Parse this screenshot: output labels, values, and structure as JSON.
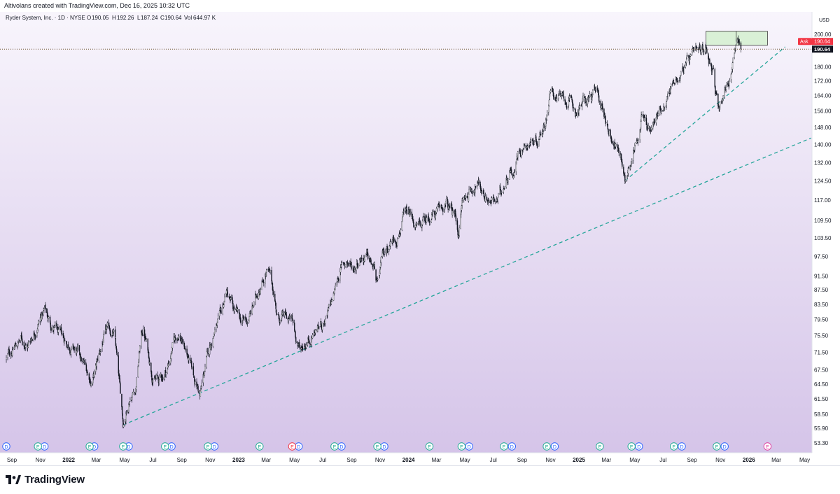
{
  "caption": "Altivolans created with TradingView.com, Dec 16, 2025 10:32 UTC",
  "brand": "TradingView",
  "colors": {
    "background_top": "#f8f5fc",
    "background_bottom": "#d4c3e8",
    "candles": "#131722",
    "trendline": "#26a69a",
    "price_line": "#6b5030",
    "ask_badge": "#f23645",
    "last_badge": "#131722",
    "zone_fill": "#d9f0d6",
    "earnings_green": "#22ab94",
    "earnings_red": "#f23645",
    "earnings_future": "#e040a0",
    "dividend_blue": "#2962ff"
  },
  "chart_data": {
    "type": "candlestick",
    "title": "Ryder System, Inc. · 1D · NYSE",
    "ohlc": {
      "O": "190.05",
      "H": "192.26",
      "L": "187.24",
      "C": "190.64",
      "Vol": "644.97 K"
    },
    "currency": "USD",
    "scale": "log",
    "ylim": [
      52.5,
      203
    ],
    "y_ticks": [
      "200.00",
      "190.00",
      "180.00",
      "172.00",
      "164.00",
      "156.00",
      "148.00",
      "140.00",
      "132.00",
      "124.50",
      "117.00",
      "109.50",
      "103.50",
      "97.50",
      "91.50",
      "87.50",
      "83.50",
      "79.50",
      "75.50",
      "71.50",
      "67.50",
      "64.50",
      "61.50",
      "58.50",
      "55.90",
      "53.30"
    ],
    "x_ticks": [
      {
        "label": "Sep",
        "date": "2021-09-01",
        "bold": false
      },
      {
        "label": "Nov",
        "date": "2021-11-01",
        "bold": false
      },
      {
        "label": "2022",
        "date": "2022-01-01",
        "bold": true
      },
      {
        "label": "Mar",
        "date": "2022-03-01",
        "bold": false
      },
      {
        "label": "May",
        "date": "2022-05-01",
        "bold": false
      },
      {
        "label": "Jul",
        "date": "2022-07-01",
        "bold": false
      },
      {
        "label": "Sep",
        "date": "2022-09-01",
        "bold": false
      },
      {
        "label": "Nov",
        "date": "2022-11-01",
        "bold": false
      },
      {
        "label": "2023",
        "date": "2023-01-01",
        "bold": true
      },
      {
        "label": "Mar",
        "date": "2023-03-01",
        "bold": false
      },
      {
        "label": "May",
        "date": "2023-05-01",
        "bold": false
      },
      {
        "label": "Jul",
        "date": "2023-07-01",
        "bold": false
      },
      {
        "label": "Sep",
        "date": "2023-09-01",
        "bold": false
      },
      {
        "label": "Nov",
        "date": "2023-11-01",
        "bold": false
      },
      {
        "label": "2024",
        "date": "2024-01-01",
        "bold": true
      },
      {
        "label": "Mar",
        "date": "2024-03-01",
        "bold": false
      },
      {
        "label": "May",
        "date": "2024-05-01",
        "bold": false
      },
      {
        "label": "Jul",
        "date": "2024-07-01",
        "bold": false
      },
      {
        "label": "Sep",
        "date": "2024-09-01",
        "bold": false
      },
      {
        "label": "Nov",
        "date": "2024-11-01",
        "bold": false
      },
      {
        "label": "2025",
        "date": "2025-01-01",
        "bold": true
      },
      {
        "label": "Mar",
        "date": "2025-03-01",
        "bold": false
      },
      {
        "label": "May",
        "date": "2025-05-01",
        "bold": false
      },
      {
        "label": "Jul",
        "date": "2025-07-01",
        "bold": false
      },
      {
        "label": "Sep",
        "date": "2025-09-01",
        "bold": false
      },
      {
        "label": "Nov",
        "date": "2025-11-01",
        "bold": false
      },
      {
        "label": "2026",
        "date": "2026-01-01",
        "bold": true
      },
      {
        "label": "Mar",
        "date": "2026-03-01",
        "bold": false
      },
      {
        "label": "May",
        "date": "2026-05-01",
        "bold": false
      }
    ],
    "price_path": [
      [
        "2021-08-20",
        70
      ],
      [
        "2021-09-01",
        72
      ],
      [
        "2021-09-20",
        74.5
      ],
      [
        "2021-10-05",
        73
      ],
      [
        "2021-10-20",
        77
      ],
      [
        "2021-11-01",
        80
      ],
      [
        "2021-11-10",
        82
      ],
      [
        "2021-11-25",
        78
      ],
      [
        "2021-12-15",
        75
      ],
      [
        "2022-01-05",
        73
      ],
      [
        "2022-01-20",
        71
      ],
      [
        "2022-02-05",
        68
      ],
      [
        "2022-02-20",
        65
      ],
      [
        "2022-03-01",
        68
      ],
      [
        "2022-03-15",
        74
      ],
      [
        "2022-03-30",
        77
      ],
      [
        "2022-04-10",
        75
      ],
      [
        "2022-04-20",
        64
      ],
      [
        "2022-04-28",
        57
      ],
      [
        "2022-05-03",
        58.5
      ],
      [
        "2022-05-12",
        62
      ],
      [
        "2022-05-25",
        64
      ],
      [
        "2022-06-05",
        75
      ],
      [
        "2022-06-10",
        77
      ],
      [
        "2022-06-20",
        72
      ],
      [
        "2022-07-01",
        66
      ],
      [
        "2022-07-15",
        65
      ],
      [
        "2022-08-01",
        68
      ],
      [
        "2022-08-15",
        74
      ],
      [
        "2022-08-25",
        76
      ],
      [
        "2022-09-10",
        72
      ],
      [
        "2022-09-25",
        66
      ],
      [
        "2022-10-05",
        64
      ],
      [
        "2022-10-10",
        62
      ],
      [
        "2022-10-25",
        70
      ],
      [
        "2022-11-10",
        77
      ],
      [
        "2022-11-25",
        80
      ],
      [
        "2022-12-05",
        87
      ],
      [
        "2022-12-20",
        82
      ],
      [
        "2023-01-05",
        79
      ],
      [
        "2023-01-20",
        79
      ],
      [
        "2023-02-05",
        84
      ],
      [
        "2023-02-15",
        89
      ],
      [
        "2023-03-01",
        93
      ],
      [
        "2023-03-10",
        91
      ],
      [
        "2023-03-20",
        85
      ],
      [
        "2023-03-25",
        80
      ],
      [
        "2023-04-10",
        80
      ],
      [
        "2023-04-25",
        79
      ],
      [
        "2023-05-05",
        75
      ],
      [
        "2023-05-12",
        72
      ],
      [
        "2023-05-25",
        74
      ],
      [
        "2023-06-10",
        76
      ],
      [
        "2023-06-25",
        78
      ],
      [
        "2023-07-10",
        80
      ],
      [
        "2023-07-25",
        86
      ],
      [
        "2023-08-05",
        93
      ],
      [
        "2023-08-20",
        96
      ],
      [
        "2023-09-05",
        94
      ],
      [
        "2023-09-20",
        98
      ],
      [
        "2023-10-05",
        97
      ],
      [
        "2023-10-20",
        93
      ],
      [
        "2023-10-26",
        88
      ],
      [
        "2023-11-05",
        96
      ],
      [
        "2023-11-20",
        102
      ],
      [
        "2023-12-05",
        104
      ],
      [
        "2023-12-20",
        110
      ],
      [
        "2024-01-05",
        111
      ],
      [
        "2024-01-20",
        106
      ],
      [
        "2024-02-05",
        109
      ],
      [
        "2024-02-20",
        112
      ],
      [
        "2024-03-05",
        112
      ],
      [
        "2024-03-20",
        115
      ],
      [
        "2024-04-01",
        113
      ],
      [
        "2024-04-10",
        111
      ],
      [
        "2024-04-18",
        105
      ],
      [
        "2024-04-25",
        116
      ],
      [
        "2024-05-10",
        120
      ],
      [
        "2024-05-25",
        124
      ],
      [
        "2024-06-10",
        120
      ],
      [
        "2024-06-25",
        117
      ],
      [
        "2024-07-10",
        116
      ],
      [
        "2024-07-25",
        124
      ],
      [
        "2024-08-05",
        130
      ],
      [
        "2024-08-15",
        128
      ],
      [
        "2024-08-25",
        138
      ],
      [
        "2024-09-10",
        141
      ],
      [
        "2024-09-25",
        142
      ],
      [
        "2024-10-05",
        143
      ],
      [
        "2024-10-20",
        151
      ],
      [
        "2024-10-30",
        164
      ],
      [
        "2024-11-10",
        165
      ],
      [
        "2024-11-25",
        162
      ],
      [
        "2024-12-10",
        160
      ],
      [
        "2024-12-25",
        156
      ],
      [
        "2025-01-10",
        160
      ],
      [
        "2025-01-25",
        163
      ],
      [
        "2025-02-05",
        165
      ],
      [
        "2025-02-20",
        158
      ],
      [
        "2025-03-05",
        148
      ],
      [
        "2025-03-20",
        140
      ],
      [
        "2025-04-05",
        133
      ],
      [
        "2025-04-10",
        124
      ],
      [
        "2025-04-20",
        133
      ],
      [
        "2025-05-01",
        139
      ],
      [
        "2025-05-15",
        153
      ],
      [
        "2025-05-25",
        150
      ],
      [
        "2025-06-05",
        146
      ],
      [
        "2025-06-20",
        154
      ],
      [
        "2025-07-05",
        162
      ],
      [
        "2025-07-20",
        170
      ],
      [
        "2025-08-01",
        174
      ],
      [
        "2025-08-10",
        179
      ],
      [
        "2025-08-25",
        183
      ],
      [
        "2025-09-10",
        186
      ],
      [
        "2025-09-20",
        187
      ],
      [
        "2025-10-01",
        192
      ],
      [
        "2025-10-06",
        188
      ],
      [
        "2025-10-12",
        183
      ],
      [
        "2025-10-17",
        178
      ],
      [
        "2025-10-22",
        165
      ],
      [
        "2025-10-27",
        158
      ],
      [
        "2025-11-02",
        162
      ],
      [
        "2025-11-10",
        168
      ],
      [
        "2025-11-20",
        172
      ],
      [
        "2025-11-28",
        183
      ],
      [
        "2025-12-05",
        191
      ],
      [
        "2025-12-10",
        193
      ],
      [
        "2025-12-15",
        190.64
      ]
    ],
    "last_price": "190.64",
    "ask_label": "Ask",
    "ask_price": "190.64",
    "trendlines": [
      {
        "from": [
          "2022-04-28",
          56.5
        ],
        "to": [
          "2026-05-15",
          143
        ]
      },
      {
        "from": [
          "2025-04-10",
          124.5
        ],
        "to": [
          "2026-03-20",
          192
        ]
      }
    ],
    "zone": {
      "from_date": "2025-10-01",
      "to_date": "2026-02-10",
      "from_price": 193,
      "to_price": 202
    },
    "zone_divider_date": "2025-12-05",
    "earnings_markers": [
      {
        "date": "2021-10-27",
        "label": "E",
        "color": "green"
      },
      {
        "date": "2022-02-15",
        "label": "E",
        "color": "green"
      },
      {
        "date": "2022-04-28",
        "label": "E",
        "color": "green"
      },
      {
        "date": "2022-07-27",
        "label": "E",
        "color": "green"
      },
      {
        "date": "2022-10-27",
        "label": "E",
        "color": "green"
      },
      {
        "date": "2023-02-15",
        "label": "E",
        "color": "green"
      },
      {
        "date": "2023-04-26",
        "label": "E",
        "color": "red"
      },
      {
        "date": "2023-07-26",
        "label": "E",
        "color": "green"
      },
      {
        "date": "2023-10-26",
        "label": "E",
        "color": "green"
      },
      {
        "date": "2024-02-15",
        "label": "E",
        "color": "green"
      },
      {
        "date": "2024-04-24",
        "label": "E",
        "color": "green"
      },
      {
        "date": "2024-07-24",
        "label": "E",
        "color": "green"
      },
      {
        "date": "2024-10-24",
        "label": "E",
        "color": "green"
      },
      {
        "date": "2025-02-15",
        "label": "E",
        "color": "green"
      },
      {
        "date": "2025-04-24",
        "label": "E",
        "color": "green"
      },
      {
        "date": "2025-07-24",
        "label": "E",
        "color": "green"
      },
      {
        "date": "2025-10-24",
        "label": "E",
        "color": "green"
      },
      {
        "date": "2026-02-10",
        "label": "E",
        "color": "future"
      }
    ],
    "dividend_markers": [
      {
        "date": "2021-08-20",
        "label": "D"
      },
      {
        "date": "2021-11-10",
        "label": "D"
      },
      {
        "date": "2022-02-25",
        "label": "D"
      },
      {
        "date": "2022-05-10",
        "label": "D"
      },
      {
        "date": "2022-08-10",
        "label": "D"
      },
      {
        "date": "2022-11-10",
        "label": "D"
      },
      {
        "date": "2023-05-10",
        "label": "D"
      },
      {
        "date": "2023-08-10",
        "label": "D"
      },
      {
        "date": "2023-11-10",
        "label": "D"
      },
      {
        "date": "2024-05-10",
        "label": "D"
      },
      {
        "date": "2024-08-10",
        "label": "D"
      },
      {
        "date": "2024-11-10",
        "label": "D"
      },
      {
        "date": "2025-05-10",
        "label": "D"
      },
      {
        "date": "2025-08-10",
        "label": "D"
      },
      {
        "date": "2025-11-10",
        "label": "D"
      }
    ]
  }
}
